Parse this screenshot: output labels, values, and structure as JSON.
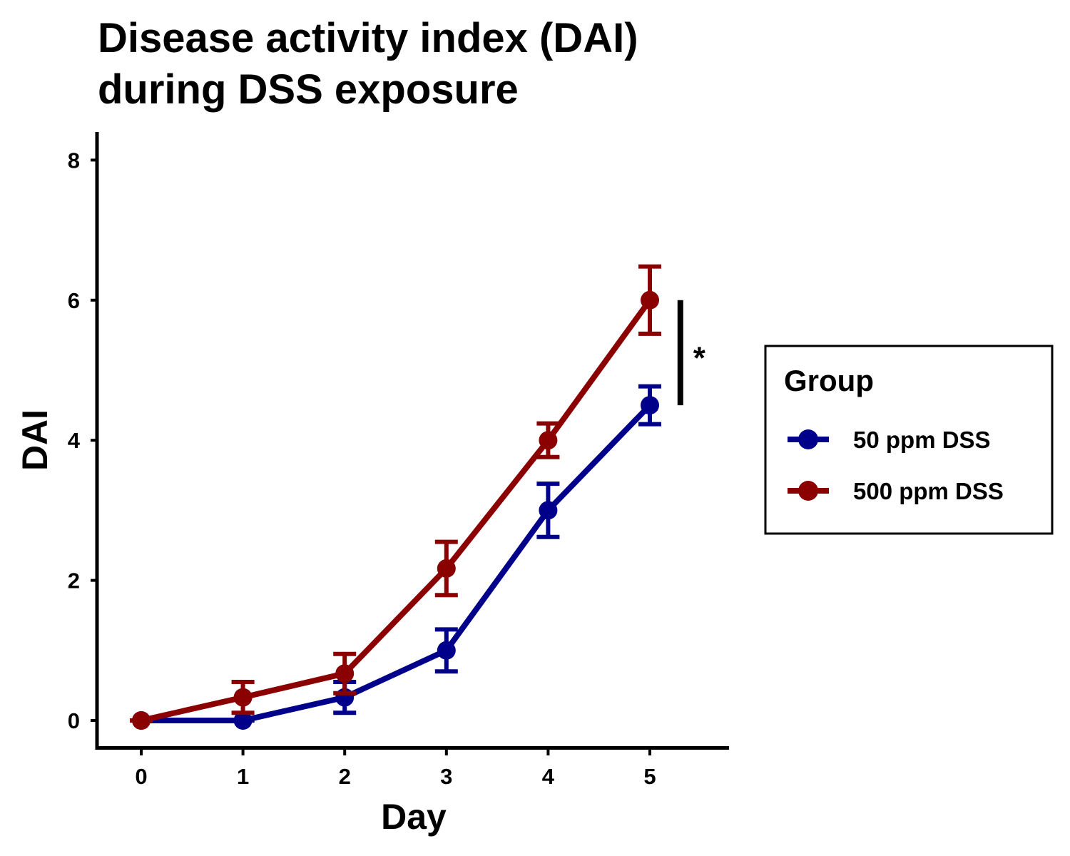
{
  "chart_data": {
    "type": "line",
    "title_lines": [
      "Disease activity index (DAI)",
      "during DSS exposure"
    ],
    "xlabel": "Day",
    "ylabel": "DAI",
    "x": [
      0,
      1,
      2,
      3,
      4,
      5
    ],
    "x_tick_labels": [
      "0",
      "1",
      "2",
      "3",
      "4",
      "5"
    ],
    "y_ticks": [
      0,
      2,
      4,
      6,
      8
    ],
    "y_tick_labels": [
      "0",
      "2",
      "4",
      "6",
      "8"
    ],
    "xlim": [
      -0.4,
      5.8
    ],
    "ylim": [
      -0.4,
      8.4
    ],
    "grid": false,
    "error_bars": true,
    "series": [
      {
        "name": "50 ppm DSS",
        "color": "#00008B",
        "values": [
          0,
          0,
          0.33,
          1.0,
          3.0,
          4.5
        ],
        "error": [
          0,
          0,
          0.22,
          0.3,
          0.38,
          0.27
        ]
      },
      {
        "name": "500 ppm DSS",
        "color": "#8B0000",
        "values": [
          0,
          0.33,
          0.67,
          2.17,
          4.0,
          6.0
        ],
        "error": [
          0,
          0.22,
          0.28,
          0.38,
          0.24,
          0.48
        ]
      }
    ],
    "significance": {
      "label": "*",
      "x": 5.3,
      "y_range": [
        4.5,
        6.0
      ]
    },
    "legend": {
      "title": "Group",
      "placement": "right"
    }
  }
}
